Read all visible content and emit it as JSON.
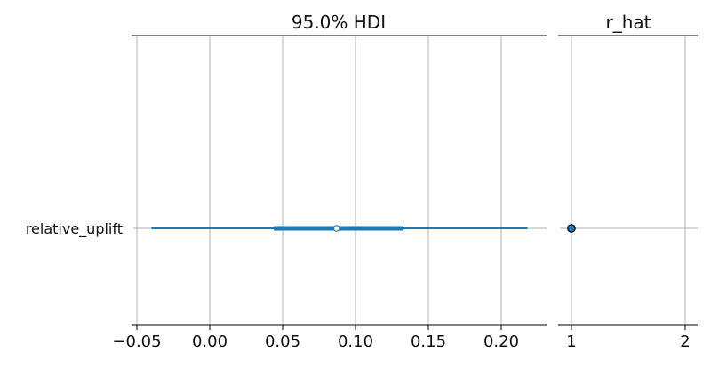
{
  "chart_data": [
    {
      "type": "forest",
      "title": "95.0% HDI",
      "xlabel": "",
      "ylabel": "",
      "categories": [
        "relative_uplift"
      ],
      "xlim": [
        -0.05,
        0.23
      ],
      "xticks": [
        -0.05,
        0.0,
        0.05,
        0.1,
        0.15,
        0.2
      ],
      "xtick_labels": [
        "−0.05",
        "0.00",
        "0.05",
        "0.10",
        "0.15",
        "0.20"
      ],
      "grid": true,
      "series": [
        {
          "median": 0.087,
          "hdi_95": [
            -0.04,
            0.218
          ],
          "hdi_inner": [
            0.044,
            0.133
          ]
        }
      ],
      "colors": {
        "interval": "#1f77b4",
        "median_fill": "#ffffff",
        "grid": "#b0b0b0",
        "axis": "#000000"
      }
    },
    {
      "type": "scatter",
      "title": "r_hat",
      "xlabel": "",
      "ylabel": "",
      "categories": [
        "relative_uplift"
      ],
      "xlim": [
        0.9,
        2.12
      ],
      "xticks": [
        1,
        2
      ],
      "xtick_labels": [
        "1",
        "2"
      ],
      "grid": true,
      "values": [
        1.0
      ],
      "colors": {
        "marker": "#1f77b4",
        "marker_edge": "#000000"
      }
    }
  ]
}
